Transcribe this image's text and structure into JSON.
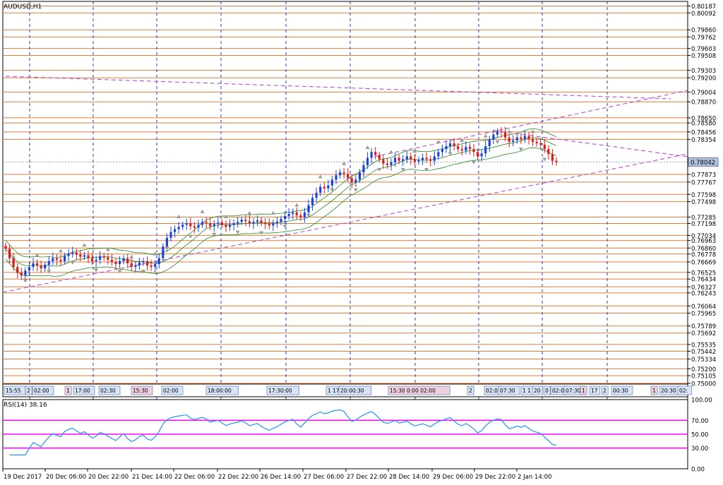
{
  "window": {
    "symbol_label": "AUDUSD,H1"
  },
  "colors": {
    "level_line": "#e07b39",
    "grid": "#1e3cb4",
    "bull": "#1a44e0",
    "bear": "#e01a1a",
    "band": "#208a20",
    "trend": "#b040d0",
    "rsi_line": "#1e90ff",
    "rsi_level": "#ff00ff",
    "current_price_bg": "#b0c4de"
  },
  "price_axis": {
    "labels": [
      "0.80187",
      "0.80092",
      "0.79860",
      "0.79762",
      "0.79603",
      "0.79508",
      "0.79303",
      "0.79200",
      "0.79004",
      "0.78870",
      "0.78650",
      "0.78580",
      "0.78456",
      "0.78354",
      "0.77873",
      "0.77767",
      "0.77598",
      "0.77498",
      "0.77285",
      "0.77198",
      "0.77034",
      "0.76963",
      "0.76860",
      "0.76778",
      "0.76669",
      "0.76525",
      "0.76434",
      "0.76327",
      "0.76243",
      "0.76064",
      "0.75965",
      "0.75789",
      "0.75692",
      "0.75535",
      "0.75442",
      "0.75334",
      "0.75200",
      "0.75105",
      "0.75000"
    ],
    "current_price": "0.78042"
  },
  "event_strip": {
    "labels": [
      "15:55",
      "2",
      "02:00",
      "1",
      "17:00",
      "02:30",
      "15:30",
      "02:00",
      "18:00:00",
      "17:30:00",
      "1 17",
      "20:00:30",
      "15:30 0:00 02:00",
      "2",
      "02:0",
      "07:30",
      "1 1",
      "20",
      "0",
      "02:0",
      "07:30",
      "1",
      "17",
      "2",
      "00:30",
      "1",
      "20:30",
      "02:"
    ]
  },
  "rsi": {
    "label": "RSI(14) 38.16",
    "axis_labels": [
      "100.00",
      "70.00",
      "50.00",
      "30.00",
      "0.00"
    ]
  },
  "time_axis": {
    "labels": [
      "19 Dec 2017",
      "20 Dec 06:00",
      "20 Dec 22:00",
      "21 Dec 14:00",
      "22 Dec 06:00",
      "22 Dec 22:00",
      "26 Dec 14:00",
      "27 Dec 06:00",
      "27 Dec 22:00",
      "28 Dec 14:00",
      "29 Dec 06:00",
      "29 Dec 22:00",
      "2 Jan 14:00"
    ]
  },
  "chart_data": {
    "type": "candlestick",
    "symbol": "AUDUSD",
    "timeframe": "H1",
    "ylim": [
      0.75,
      0.8025
    ],
    "closes": [
      0.7685,
      0.7672,
      0.766,
      0.7652,
      0.7648,
      0.7655,
      0.766,
      0.7665,
      0.7662,
      0.7658,
      0.7663,
      0.7668,
      0.7672,
      0.767,
      0.7668,
      0.7675,
      0.7678,
      0.768,
      0.7677,
      0.7674,
      0.7676,
      0.7672,
      0.7668,
      0.767,
      0.7675,
      0.7673,
      0.767,
      0.7667,
      0.7664,
      0.7668,
      0.7672,
      0.7665,
      0.766,
      0.7662,
      0.7666,
      0.7668,
      0.7662,
      0.766,
      0.7664,
      0.7672,
      0.7688,
      0.77,
      0.7708,
      0.7712,
      0.7715,
      0.7718,
      0.772,
      0.7716,
      0.7714,
      0.7718,
      0.7722,
      0.772,
      0.7716,
      0.7719,
      0.7721,
      0.7718,
      0.7715,
      0.7718,
      0.772,
      0.7722,
      0.7725,
      0.7723,
      0.772,
      0.7722,
      0.7724,
      0.7721,
      0.7719,
      0.7717,
      0.772,
      0.7722,
      0.7726,
      0.773,
      0.7733,
      0.7735,
      0.7731,
      0.7728,
      0.7735,
      0.7745,
      0.7755,
      0.7762,
      0.777,
      0.7768,
      0.7772,
      0.778,
      0.7786,
      0.779,
      0.7788,
      0.7782,
      0.7776,
      0.778,
      0.779,
      0.78,
      0.781,
      0.7818,
      0.7814,
      0.7808,
      0.7802,
      0.78,
      0.7804,
      0.781,
      0.7806,
      0.7808,
      0.7812,
      0.7808,
      0.7805,
      0.7807,
      0.781,
      0.7808,
      0.7806,
      0.7812,
      0.7818,
      0.7822,
      0.7826,
      0.783,
      0.7826,
      0.7822,
      0.782,
      0.7825,
      0.7822,
      0.7818,
      0.7812,
      0.7816,
      0.7826,
      0.7835,
      0.7842,
      0.7846,
      0.7845,
      0.7838,
      0.7832,
      0.7834,
      0.7838,
      0.7836,
      0.784,
      0.7836,
      0.7832,
      0.783,
      0.7828,
      0.7822,
      0.7815,
      0.7806,
      0.7804
    ]
  }
}
